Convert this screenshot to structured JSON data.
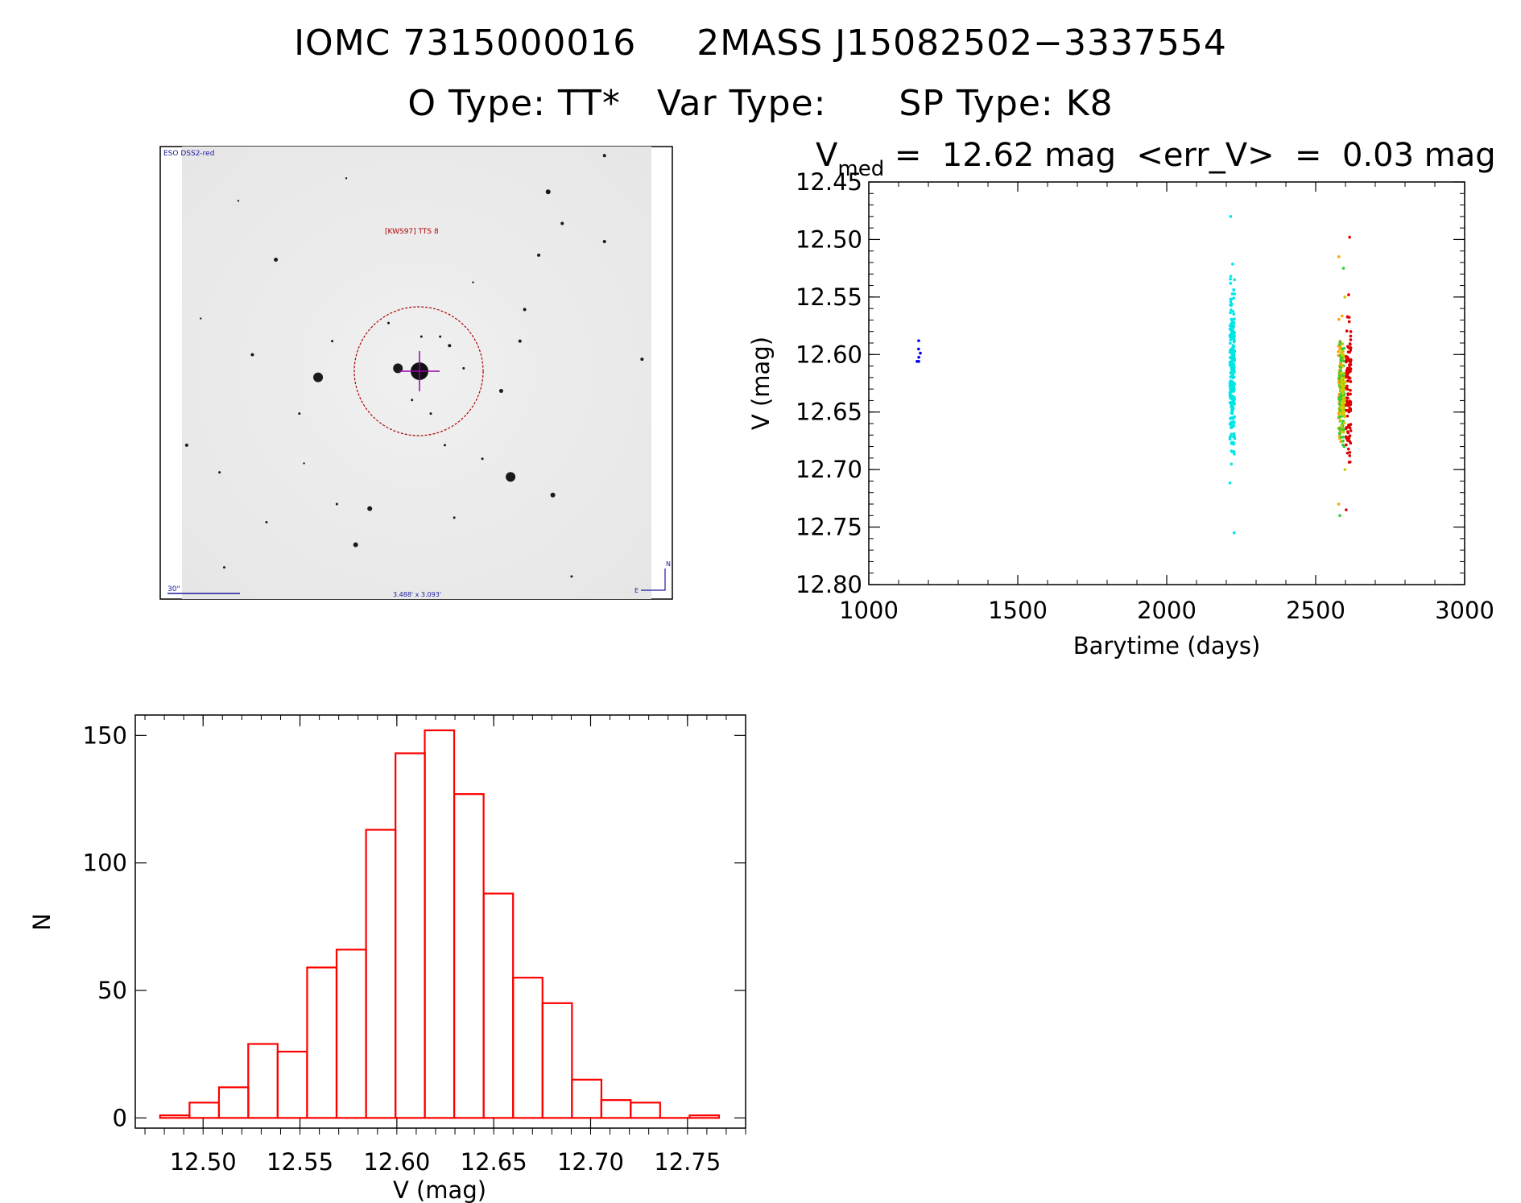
{
  "header": {
    "title_parts": [
      "IOMC 7315000016",
      "2MASS J15082502−3337554"
    ],
    "subtitle_parts": [
      "O Type: TT*",
      "Var Type:",
      "SP Type: K8"
    ]
  },
  "finder": {
    "survey_label": "ESO DSS2-red",
    "target_label": "[KWS97] TTS 8",
    "scale_label": "30\"",
    "fov_label": "3.488' x 3.093'",
    "north_label": "N",
    "east_label": "E",
    "stars": [
      [
        0.78,
        0.1,
        3
      ],
      [
        0.81,
        0.17,
        2
      ],
      [
        0.76,
        0.24,
        2
      ],
      [
        0.9,
        0.21,
        2
      ],
      [
        0.9,
        0.02,
        2
      ],
      [
        0.2,
        0.25,
        2.5
      ],
      [
        0.73,
        0.36,
        2
      ],
      [
        0.72,
        0.43,
        2
      ],
      [
        0.57,
        0.44,
        2
      ],
      [
        0.15,
        0.46,
        2
      ],
      [
        0.32,
        0.43,
        1.5
      ],
      [
        0.55,
        0.42,
        1.5
      ],
      [
        0.6,
        0.49,
        1.5
      ],
      [
        0.29,
        0.51,
        6
      ],
      [
        0.46,
        0.49,
        6
      ],
      [
        0.68,
        0.54,
        2.5
      ],
      [
        0.25,
        0.59,
        1.5
      ],
      [
        0.56,
        0.66,
        1.5
      ],
      [
        0.01,
        0.66,
        2
      ],
      [
        0.7,
        0.73,
        6
      ],
      [
        0.79,
        0.77,
        3
      ],
      [
        0.4,
        0.8,
        3
      ],
      [
        0.33,
        0.79,
        1.5
      ],
      [
        0.37,
        0.88,
        3
      ],
      [
        0.58,
        0.82,
        1.5
      ],
      [
        0.53,
        0.59,
        1.5
      ],
      [
        0.08,
        0.72,
        1.5
      ],
      [
        0.44,
        0.39,
        1.5
      ],
      [
        0.51,
        0.42,
        1.5
      ],
      [
        0.49,
        0.56,
        1.5
      ],
      [
        0.64,
        0.69,
        1.5
      ],
      [
        0.18,
        0.83,
        1.5
      ],
      [
        0.83,
        0.95,
        1.5
      ],
      [
        0.09,
        0.93,
        1.5
      ],
      [
        0.98,
        0.47,
        2
      ],
      [
        0.35,
        0.07,
        1.2
      ],
      [
        0.12,
        0.12,
        1.2
      ],
      [
        0.62,
        0.3,
        1.2
      ],
      [
        0.04,
        0.38,
        1.2
      ],
      [
        0.26,
        0.7,
        1.2
      ]
    ]
  },
  "lightcurve_header": {
    "prefix": "V",
    "subscript": "med",
    "text": " =  12.62 mag  <err_V>  =  0.03 mag"
  },
  "chart_data": [
    {
      "type": "scatter",
      "xlabel": "Barytime (days)",
      "ylabel": "V (mag)",
      "xlim": [
        1000,
        3000
      ],
      "ylim": [
        12.8,
        12.45
      ],
      "y_inverted": true,
      "xticks": [
        "1000",
        "1500",
        "2000",
        "2500",
        "3000"
      ],
      "yticks": [
        "12.45",
        "12.50",
        "12.55",
        "12.60",
        "12.65",
        "12.70",
        "12.75",
        "12.80"
      ],
      "series": [
        {
          "color": "#0000ff",
          "x": 1165,
          "ymin": 12.588,
          "ymax": 12.606,
          "n": 6
        },
        {
          "color": "#00e6e6",
          "x": 2220,
          "ymin": 12.48,
          "ymax": 12.755,
          "n": 260,
          "core": [
            12.51,
            12.72
          ]
        },
        {
          "color": "#ffa500",
          "x": 2584,
          "ymin": 12.515,
          "ymax": 12.73,
          "n": 80,
          "core": [
            12.56,
            12.7
          ]
        },
        {
          "color": "#33cc33",
          "x": 2588,
          "ymin": 12.525,
          "ymax": 12.74,
          "n": 110,
          "core": [
            12.57,
            12.7
          ]
        },
        {
          "color": "#cccc00",
          "x": 2591,
          "ymin": 12.55,
          "ymax": 12.7,
          "n": 60,
          "core": [
            12.58,
            12.69
          ]
        },
        {
          "color": "#dd0000",
          "x": 2610,
          "ymin": 12.498,
          "ymax": 12.735,
          "n": 110,
          "core": [
            12.53,
            12.72
          ]
        }
      ]
    },
    {
      "type": "bar",
      "style": "step-histogram",
      "xlabel": "V (mag)",
      "ylabel": "N",
      "xlim": [
        12.465,
        12.78
      ],
      "ylim": [
        -4,
        158
      ],
      "xticks": [
        "12.50",
        "12.55",
        "12.60",
        "12.65",
        "12.70",
        "12.75"
      ],
      "yticks": [
        "0",
        "50",
        "100",
        "150"
      ],
      "bin_width": 0.01518,
      "bin_starts": [
        12.4778,
        12.493,
        12.5082,
        12.5233,
        12.5385,
        12.5537,
        12.5689,
        12.5841,
        12.5993,
        12.6144,
        12.6296,
        12.6448,
        12.66,
        12.6752,
        12.6904,
        12.7055,
        12.7207,
        12.7359,
        12.7511
      ],
      "values": [
        1,
        6,
        12,
        29,
        26,
        59,
        66,
        113,
        143,
        152,
        127,
        88,
        55,
        45,
        15,
        7,
        6,
        0,
        1
      ],
      "color": "#ff0000"
    }
  ]
}
